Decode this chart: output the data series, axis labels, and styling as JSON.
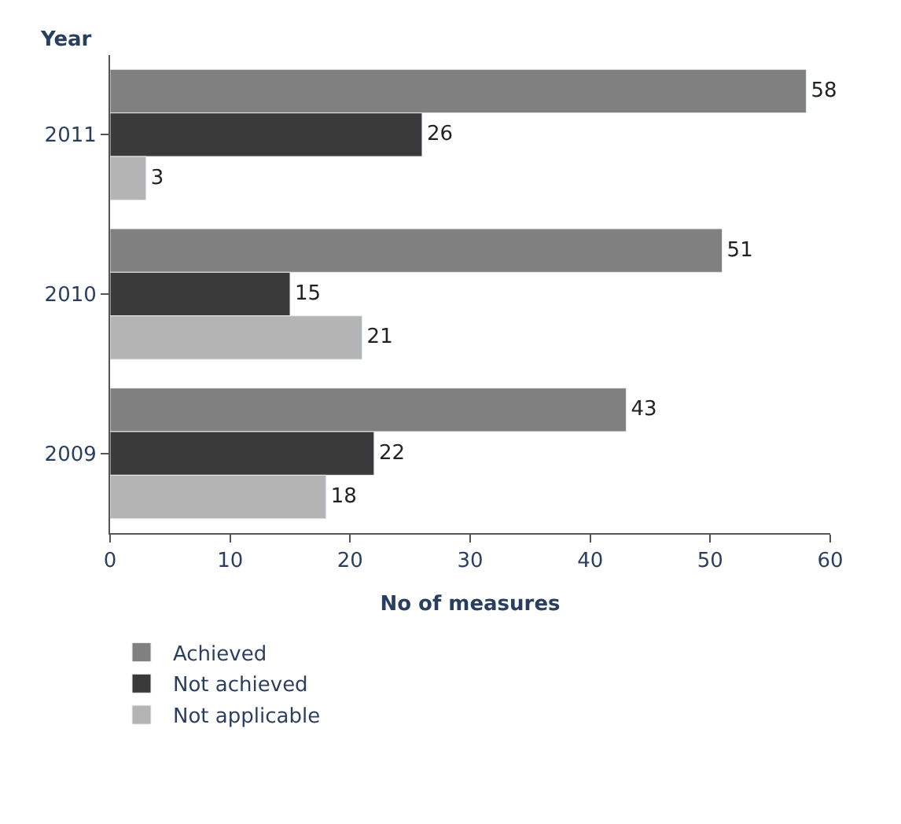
{
  "chart_data": {
    "type": "bar",
    "orientation": "horizontal",
    "ylabel": "Year",
    "xlabel": "No of measures",
    "categories": [
      "2011",
      "2010",
      "2009"
    ],
    "series": [
      {
        "name": "Achieved",
        "color": "#808080",
        "values": [
          58,
          51,
          43
        ]
      },
      {
        "name": "Not achieved",
        "color": "#3a3a3a",
        "values": [
          26,
          15,
          22
        ]
      },
      {
        "name": "Not applicable",
        "color": "#b4b4b4",
        "values": [
          3,
          21,
          18
        ]
      }
    ],
    "xlim": [
      0,
      60
    ],
    "xticks": [
      0,
      10,
      20,
      30,
      40,
      50,
      60
    ],
    "data_labels": true,
    "legend": "bottom"
  }
}
